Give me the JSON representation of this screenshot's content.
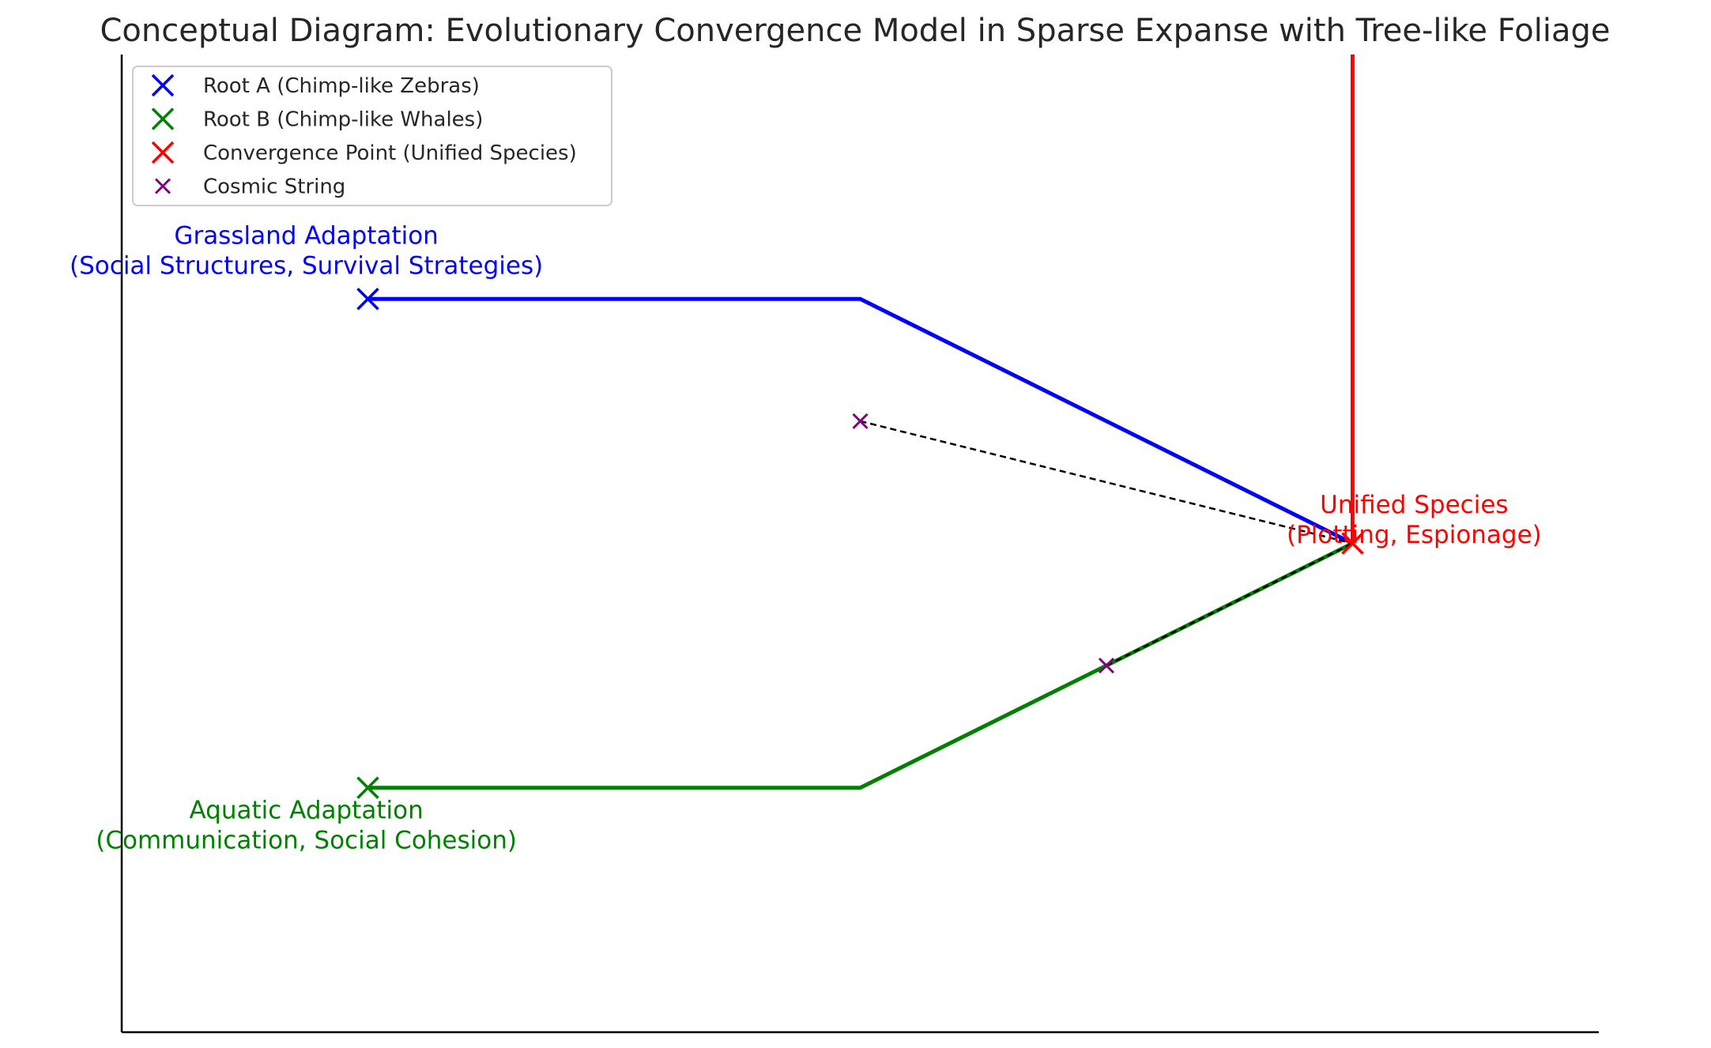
{
  "title": "Conceptual Diagram: Evolutionary Convergence Model in Sparse Expanse with Tree-like Foliage",
  "legend": [
    {
      "key": "root_a",
      "label": "Root A (Chimp-like Zebras)",
      "color": "#0000ff",
      "marker": "x-large"
    },
    {
      "key": "root_b",
      "label": "Root B (Chimp-like Whales)",
      "color": "#008000",
      "marker": "x-large"
    },
    {
      "key": "convergence",
      "label": "Convergence Point (Unified Species)",
      "color": "#ff0000",
      "marker": "x-large"
    },
    {
      "key": "cosmic",
      "label": "Cosmic String",
      "color": "#800080",
      "marker": "x-small"
    }
  ],
  "chart_data": {
    "type": "diagram",
    "xlim": [
      0,
      12
    ],
    "ylim": [
      0,
      8
    ],
    "points": {
      "root_a": [
        2,
        6
      ],
      "root_b": [
        2,
        2
      ],
      "convergence": [
        10,
        4
      ],
      "cosmic_strings": [
        [
          6,
          5
        ],
        [
          8,
          3
        ]
      ]
    },
    "paths": [
      {
        "key": "root_a_path",
        "color": "#0000ff",
        "points": [
          [
            2,
            6
          ],
          [
            6,
            6
          ],
          [
            10,
            4
          ]
        ]
      },
      {
        "key": "root_b_path",
        "color": "#008000",
        "points": [
          [
            2,
            2
          ],
          [
            6,
            2
          ],
          [
            10,
            4
          ]
        ]
      },
      {
        "key": "convergence_stem",
        "color": "#ff0000",
        "points": [
          [
            10,
            4
          ],
          [
            10,
            8
          ]
        ]
      }
    ],
    "dashed_links": [
      [
        [
          6,
          5
        ],
        [
          10,
          4
        ]
      ],
      [
        [
          8,
          3
        ],
        [
          10,
          4
        ]
      ]
    ],
    "annotations": [
      {
        "key": "grassland",
        "color": "#0000ff",
        "at": [
          1.5,
          6.45
        ],
        "lines": [
          "Grassland Adaptation",
          "(Social Structures, Survival Strategies)"
        ]
      },
      {
        "key": "aquatic",
        "color": "#008000",
        "at": [
          1.5,
          1.75
        ],
        "lines": [
          "Aquatic Adaptation",
          "(Communication, Social Cohesion)"
        ]
      },
      {
        "key": "unified",
        "color": "#ff0000",
        "at": [
          10.5,
          4.25
        ],
        "lines": [
          "Unified Species",
          "(Plotting, Espionage)"
        ]
      }
    ]
  }
}
